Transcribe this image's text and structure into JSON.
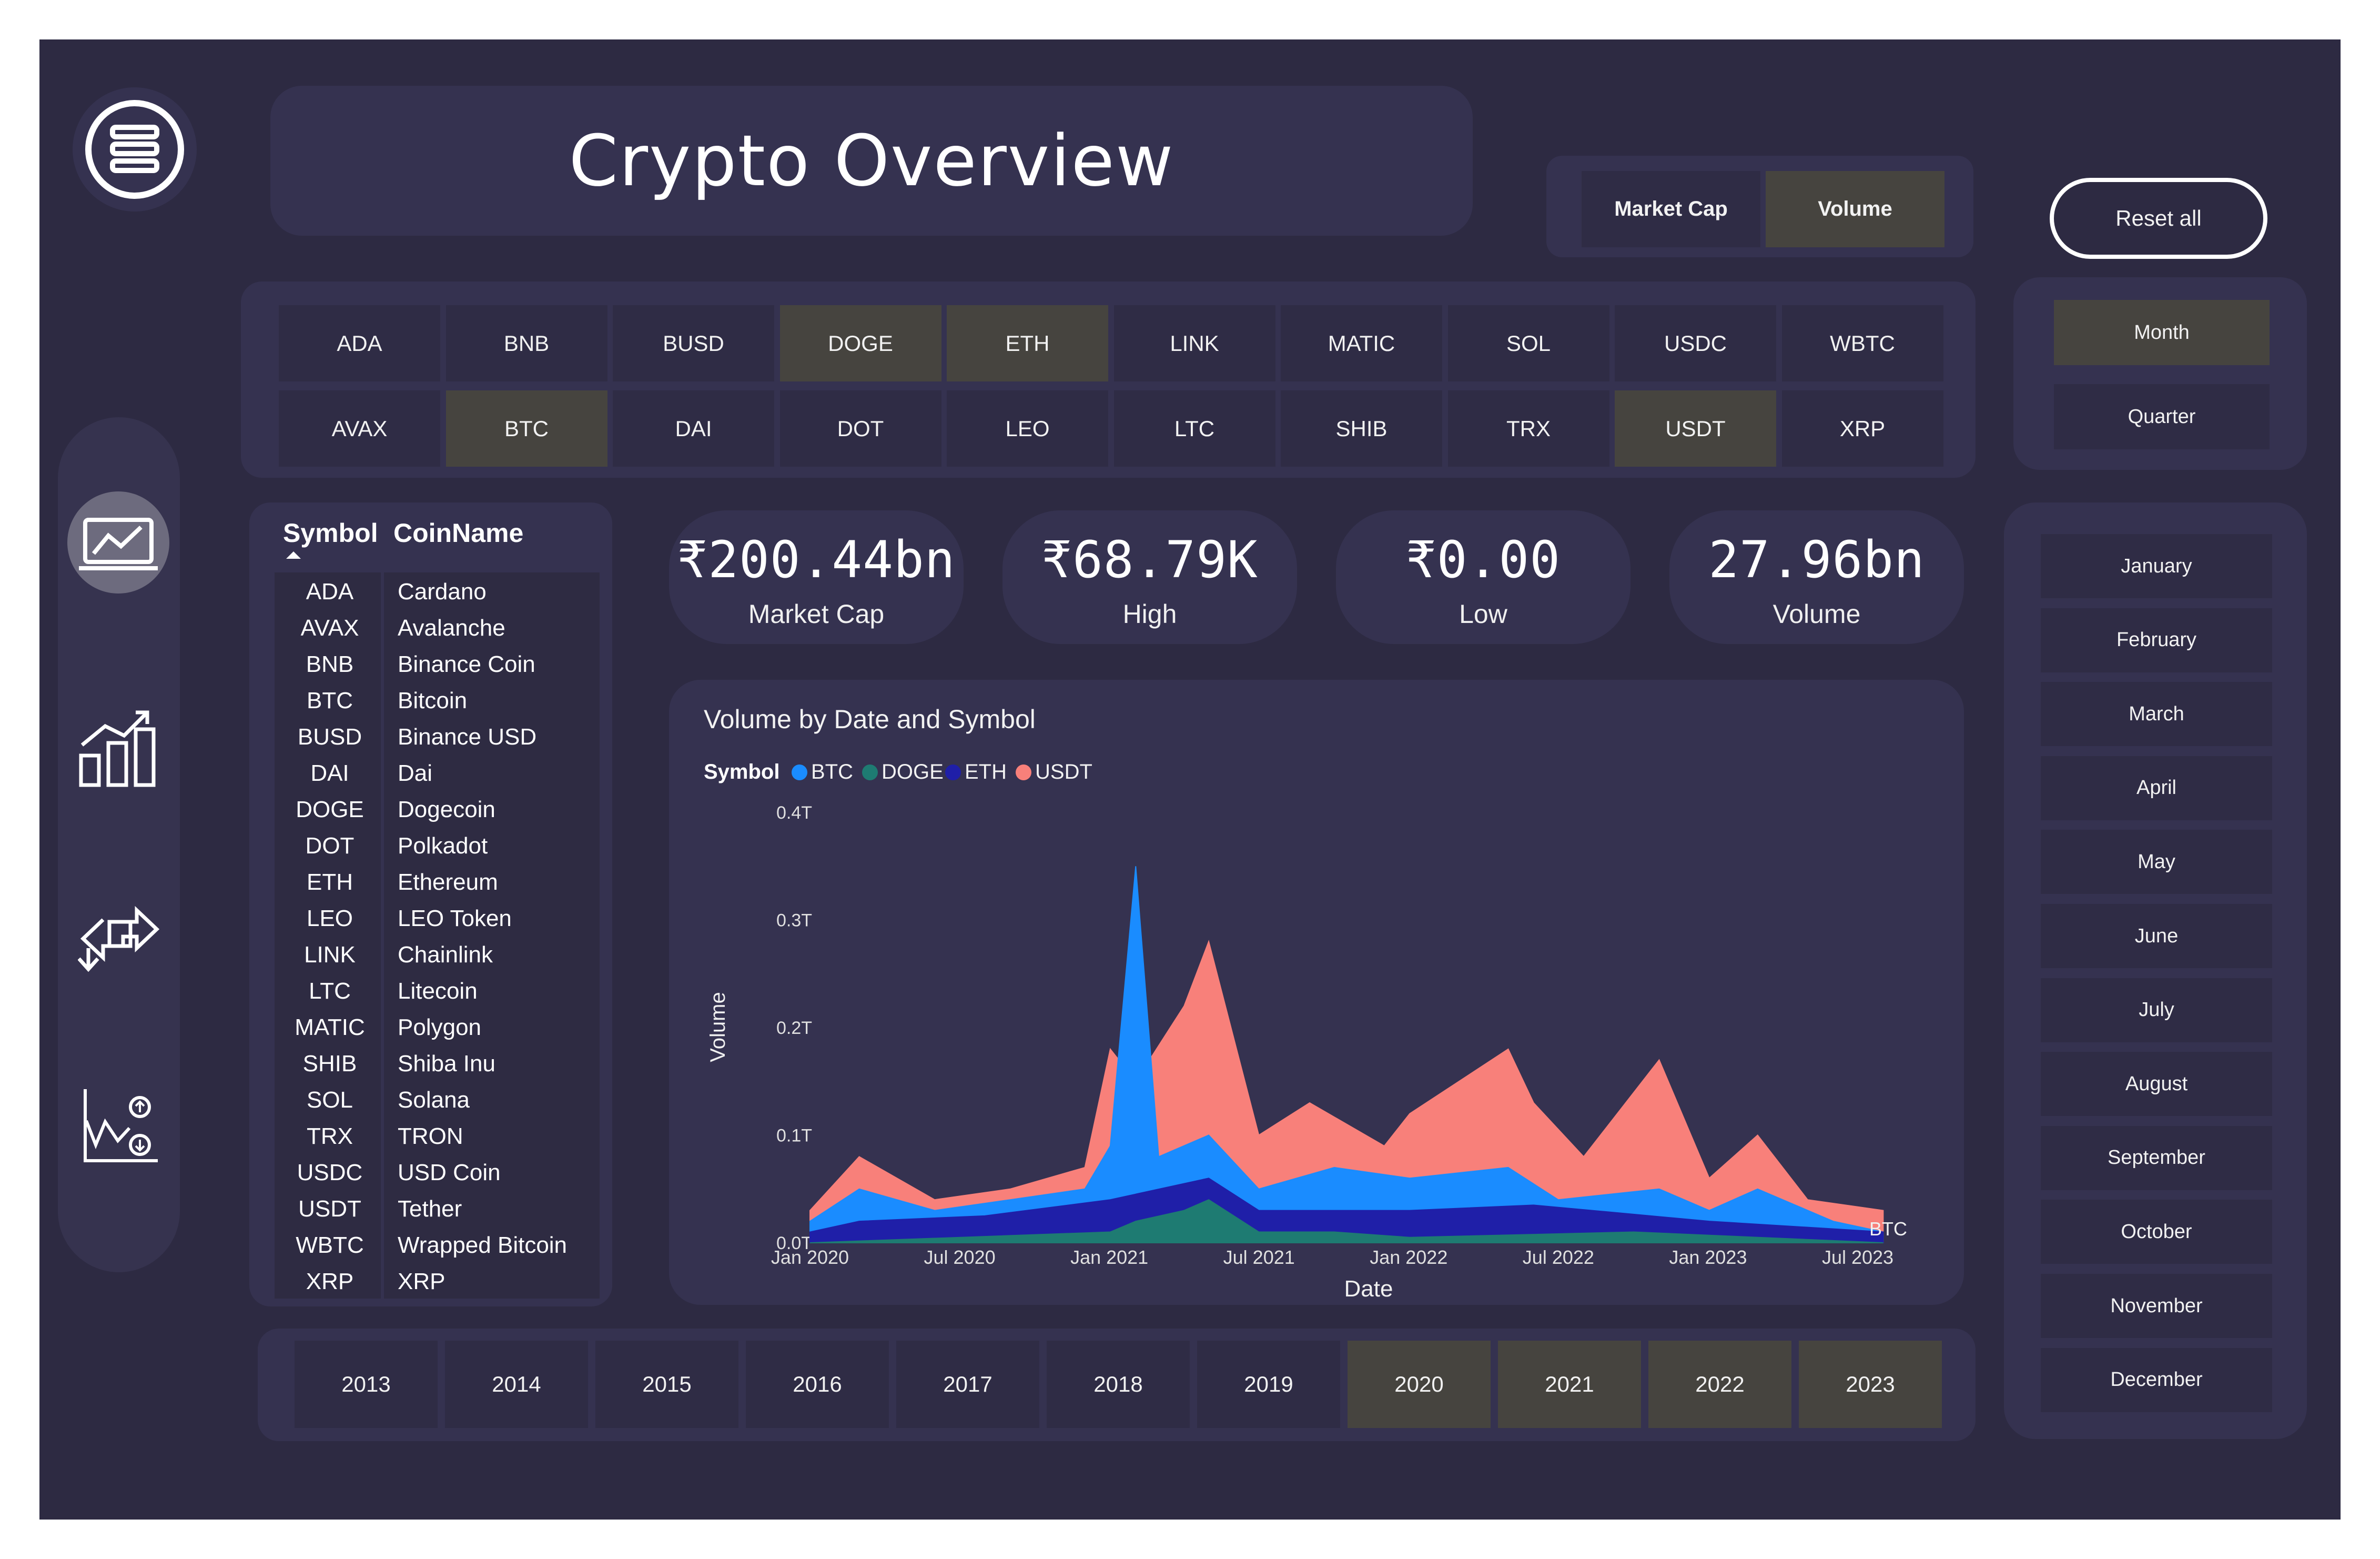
{
  "title": "Crypto Overview",
  "measure_toggle": {
    "options": [
      "Market Cap",
      "Volume"
    ],
    "selected": "Volume"
  },
  "reset_label": "Reset all",
  "period_toggle": {
    "options": [
      "Month",
      "Quarter"
    ],
    "selected": "Month"
  },
  "symbol_slicer": {
    "row1": [
      "ADA",
      "BNB",
      "BUSD",
      "DOGE",
      "ETH",
      "LINK",
      "MATIC",
      "SOL",
      "USDC",
      "WBTC"
    ],
    "row2": [
      "AVAX",
      "BTC",
      "DAI",
      "DOT",
      "LEO",
      "LTC",
      "SHIB",
      "TRX",
      "USDT",
      "XRP"
    ],
    "selected": [
      "DOGE",
      "ETH",
      "BTC",
      "USDT"
    ]
  },
  "table": {
    "headers": {
      "symbol": "Symbol",
      "coin": "CoinName"
    },
    "rows": [
      [
        "ADA",
        "Cardano"
      ],
      [
        "AVAX",
        "Avalanche"
      ],
      [
        "BNB",
        "Binance Coin"
      ],
      [
        "BTC",
        "Bitcoin"
      ],
      [
        "BUSD",
        "Binance USD"
      ],
      [
        "DAI",
        "Dai"
      ],
      [
        "DOGE",
        "Dogecoin"
      ],
      [
        "DOT",
        "Polkadot"
      ],
      [
        "ETH",
        "Ethereum"
      ],
      [
        "LEO",
        "LEO Token"
      ],
      [
        "LINK",
        "Chainlink"
      ],
      [
        "LTC",
        "Litecoin"
      ],
      [
        "MATIC",
        "Polygon"
      ],
      [
        "SHIB",
        "Shiba Inu"
      ],
      [
        "SOL",
        "Solana"
      ],
      [
        "TRX",
        "TRON"
      ],
      [
        "USDC",
        "USD Coin"
      ],
      [
        "USDT",
        "Tether"
      ],
      [
        "WBTC",
        "Wrapped Bitcoin"
      ],
      [
        "XRP",
        "XRP"
      ]
    ]
  },
  "kpis": [
    {
      "value": "₹200.44bn",
      "label": "Market Cap"
    },
    {
      "value": "₹68.79K",
      "label": "High"
    },
    {
      "value": "₹0.00",
      "label": "Low"
    },
    {
      "value": "27.96bn",
      "label": "Volume"
    }
  ],
  "chart_data": {
    "type": "area",
    "title": "Volume by Date and Symbol",
    "legend_title": "Symbol",
    "legend_position": "top-left",
    "xlabel": "Date",
    "ylabel": "Volume",
    "x_ticks": [
      "Jan 2020",
      "Jul 2020",
      "Jan 2021",
      "Jul 2021",
      "Jan 2022",
      "Jul 2022",
      "Jan 2023",
      "Jul 2023"
    ],
    "y_ticks": [
      "0.0T",
      "0.1T",
      "0.2T",
      "0.3T",
      "0.4T"
    ],
    "ylim": [
      0,
      0.4
    ],
    "end_label": "BTC",
    "stacked": false,
    "series": [
      {
        "name": "BTC",
        "color": "#1a8cff",
        "points": [
          [
            "2020-01",
            0.02
          ],
          [
            "2020-03",
            0.05
          ],
          [
            "2020-06",
            0.03
          ],
          [
            "2020-09",
            0.04
          ],
          [
            "2020-12",
            0.05
          ],
          [
            "2021-01",
            0.09
          ],
          [
            "2021-02",
            0.35
          ],
          [
            "2021-03",
            0.08
          ],
          [
            "2021-05",
            0.1
          ],
          [
            "2021-07",
            0.05
          ],
          [
            "2021-10",
            0.07
          ],
          [
            "2022-01",
            0.06
          ],
          [
            "2022-05",
            0.07
          ],
          [
            "2022-07",
            0.04
          ],
          [
            "2022-11",
            0.05
          ],
          [
            "2023-01",
            0.03
          ],
          [
            "2023-03",
            0.05
          ],
          [
            "2023-06",
            0.02
          ],
          [
            "2023-08",
            0.01
          ]
        ]
      },
      {
        "name": "DOGE",
        "color": "#1e7b72",
        "points": [
          [
            "2020-01",
            0.0
          ],
          [
            "2021-01",
            0.01
          ],
          [
            "2021-02",
            0.02
          ],
          [
            "2021-04",
            0.03
          ],
          [
            "2021-05",
            0.04
          ],
          [
            "2021-07",
            0.01
          ],
          [
            "2021-10",
            0.01
          ],
          [
            "2022-01",
            0.005
          ],
          [
            "2022-10",
            0.01
          ],
          [
            "2023-08",
            0.0
          ]
        ]
      },
      {
        "name": "ETH",
        "color": "#1f1fa8",
        "points": [
          [
            "2020-01",
            0.01
          ],
          [
            "2020-03",
            0.02
          ],
          [
            "2020-08",
            0.025
          ],
          [
            "2021-01",
            0.04
          ],
          [
            "2021-05",
            0.06
          ],
          [
            "2021-07",
            0.03
          ],
          [
            "2022-01",
            0.03
          ],
          [
            "2022-06",
            0.035
          ],
          [
            "2023-01",
            0.02
          ],
          [
            "2023-08",
            0.01
          ]
        ]
      },
      {
        "name": "USDT",
        "color": "#f8807a",
        "points": [
          [
            "2020-01",
            0.03
          ],
          [
            "2020-03",
            0.08
          ],
          [
            "2020-06",
            0.04
          ],
          [
            "2020-09",
            0.05
          ],
          [
            "2020-12",
            0.07
          ],
          [
            "2021-01",
            0.18
          ],
          [
            "2021-02",
            0.15
          ],
          [
            "2021-04",
            0.22
          ],
          [
            "2021-05",
            0.28
          ],
          [
            "2021-07",
            0.1
          ],
          [
            "2021-09",
            0.13
          ],
          [
            "2021-12",
            0.09
          ],
          [
            "2022-01",
            0.12
          ],
          [
            "2022-05",
            0.18
          ],
          [
            "2022-06",
            0.13
          ],
          [
            "2022-08",
            0.08
          ],
          [
            "2022-11",
            0.17
          ],
          [
            "2023-01",
            0.06
          ],
          [
            "2023-03",
            0.1
          ],
          [
            "2023-05",
            0.04
          ],
          [
            "2023-08",
            0.03
          ]
        ]
      }
    ]
  },
  "years": {
    "options": [
      "2013",
      "2014",
      "2015",
      "2016",
      "2017",
      "2018",
      "2019",
      "2020",
      "2021",
      "2022",
      "2023"
    ],
    "selected": [
      "2020",
      "2021",
      "2022",
      "2023"
    ]
  },
  "months": [
    "January",
    "February",
    "March",
    "April",
    "May",
    "June",
    "July",
    "August",
    "September",
    "October",
    "November",
    "December"
  ],
  "nav": [
    "menu-icon",
    "overview-icon",
    "bar-chart-icon",
    "exchange-icon",
    "trend-icon"
  ]
}
